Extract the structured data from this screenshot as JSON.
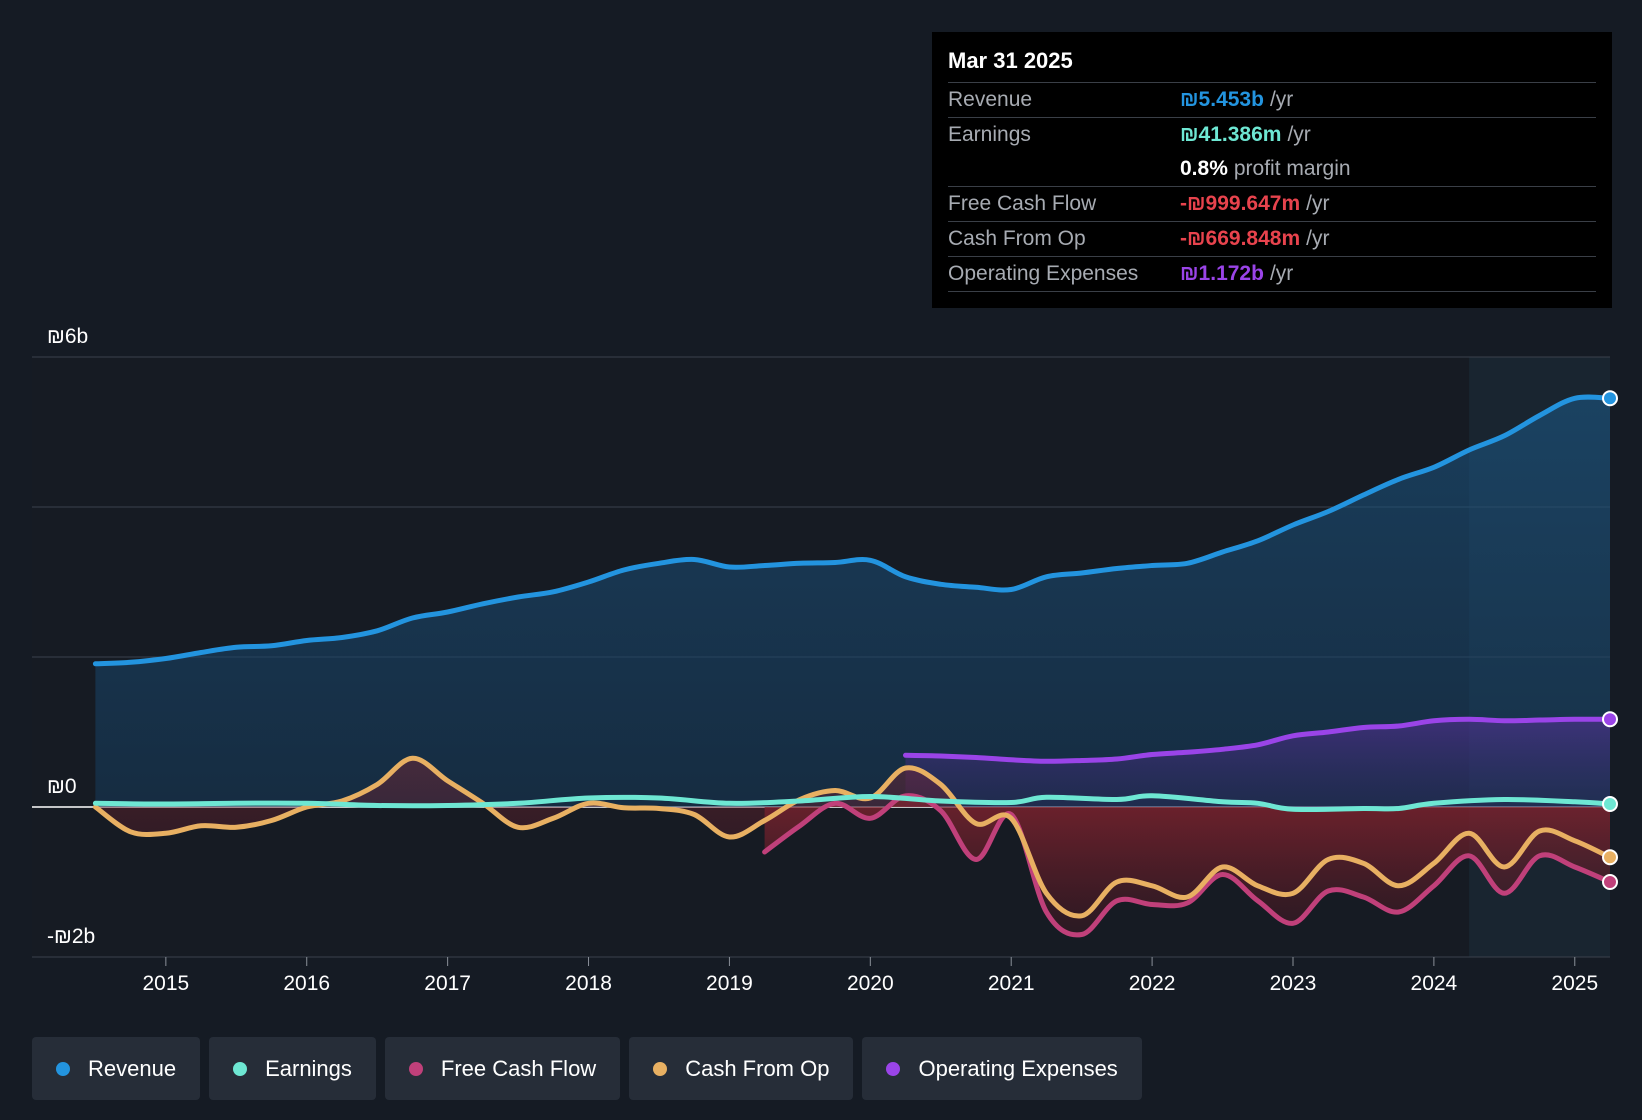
{
  "chart_data": {
    "type": "line",
    "y_unit": "billion ILS",
    "ylim": [
      -2,
      6
    ],
    "y_labels": [
      {
        "value": 6,
        "text": "₪6b"
      },
      {
        "value": 0,
        "text": "₪0"
      },
      {
        "value": -2,
        "text": "-₪2b"
      }
    ],
    "gridlines": [
      6,
      4,
      2,
      0,
      -2
    ],
    "xlim": [
      2014.05,
      2025.25
    ],
    "x_ticks": [
      "2015",
      "2016",
      "2017",
      "2018",
      "2019",
      "2020",
      "2021",
      "2022",
      "2023",
      "2024",
      "2025"
    ],
    "highlight_from": 2024.25,
    "series": [
      {
        "name": "Revenue",
        "color": "#2394df",
        "area": true,
        "points": [
          [
            2014.5,
            1.91
          ],
          [
            2014.75,
            1.93
          ],
          [
            2015.0,
            1.98
          ],
          [
            2015.25,
            2.06
          ],
          [
            2015.5,
            2.13
          ],
          [
            2015.75,
            2.15
          ],
          [
            2016.0,
            2.22
          ],
          [
            2016.25,
            2.26
          ],
          [
            2016.5,
            2.35
          ],
          [
            2016.75,
            2.52
          ],
          [
            2017.0,
            2.6
          ],
          [
            2017.25,
            2.71
          ],
          [
            2017.5,
            2.8
          ],
          [
            2017.75,
            2.87
          ],
          [
            2018.0,
            3.0
          ],
          [
            2018.25,
            3.16
          ],
          [
            2018.5,
            3.25
          ],
          [
            2018.75,
            3.3
          ],
          [
            2019.0,
            3.2
          ],
          [
            2019.25,
            3.22
          ],
          [
            2019.5,
            3.25
          ],
          [
            2019.75,
            3.26
          ],
          [
            2020.0,
            3.29
          ],
          [
            2020.25,
            3.07
          ],
          [
            2020.5,
            2.97
          ],
          [
            2020.75,
            2.93
          ],
          [
            2021.0,
            2.9
          ],
          [
            2021.25,
            3.07
          ],
          [
            2021.5,
            3.12
          ],
          [
            2021.75,
            3.18
          ],
          [
            2022.0,
            3.22
          ],
          [
            2022.25,
            3.25
          ],
          [
            2022.5,
            3.4
          ],
          [
            2022.75,
            3.55
          ],
          [
            2023.0,
            3.76
          ],
          [
            2023.25,
            3.94
          ],
          [
            2023.5,
            4.16
          ],
          [
            2023.75,
            4.37
          ],
          [
            2024.0,
            4.53
          ],
          [
            2024.25,
            4.76
          ],
          [
            2024.5,
            4.95
          ],
          [
            2024.75,
            5.22
          ],
          [
            2025.0,
            5.45
          ],
          [
            2025.25,
            5.45
          ]
        ]
      },
      {
        "name": "Earnings",
        "color": "#6ee7d3",
        "area": false,
        "points": [
          [
            2014.5,
            0.05
          ],
          [
            2015.0,
            0.04
          ],
          [
            2015.5,
            0.05
          ],
          [
            2016.0,
            0.05
          ],
          [
            2016.5,
            0.02
          ],
          [
            2017.0,
            0.02
          ],
          [
            2017.5,
            0.05
          ],
          [
            2018.0,
            0.12
          ],
          [
            2018.5,
            0.12
          ],
          [
            2019.0,
            0.05
          ],
          [
            2019.5,
            0.08
          ],
          [
            2020.0,
            0.14
          ],
          [
            2020.5,
            0.08
          ],
          [
            2021.0,
            0.06
          ],
          [
            2021.25,
            0.13
          ],
          [
            2021.75,
            0.1
          ],
          [
            2022.0,
            0.15
          ],
          [
            2022.5,
            0.07
          ],
          [
            2022.75,
            0.05
          ],
          [
            2023.0,
            -0.03
          ],
          [
            2023.5,
            -0.02
          ],
          [
            2023.75,
            -0.02
          ],
          [
            2024.0,
            0.05
          ],
          [
            2024.5,
            0.1
          ],
          [
            2025.0,
            0.07
          ],
          [
            2025.25,
            0.04
          ]
        ]
      },
      {
        "name": "Free Cash Flow",
        "color": "#c0407a",
        "area": true,
        "points": [
          [
            2019.25,
            -0.6
          ],
          [
            2019.5,
            -0.25
          ],
          [
            2019.75,
            0.05
          ],
          [
            2020.0,
            -0.15
          ],
          [
            2020.25,
            0.15
          ],
          [
            2020.5,
            -0.05
          ],
          [
            2020.75,
            -0.7
          ],
          [
            2021.0,
            -0.1
          ],
          [
            2021.25,
            -1.4
          ],
          [
            2021.5,
            -1.7
          ],
          [
            2021.75,
            -1.25
          ],
          [
            2022.0,
            -1.3
          ],
          [
            2022.25,
            -1.28
          ],
          [
            2022.5,
            -0.9
          ],
          [
            2022.75,
            -1.25
          ],
          [
            2023.0,
            -1.55
          ],
          [
            2023.25,
            -1.12
          ],
          [
            2023.5,
            -1.2
          ],
          [
            2023.75,
            -1.4
          ],
          [
            2024.0,
            -1.05
          ],
          [
            2024.25,
            -0.65
          ],
          [
            2024.5,
            -1.15
          ],
          [
            2024.75,
            -0.65
          ],
          [
            2025.0,
            -0.8
          ],
          [
            2025.25,
            -1.0
          ]
        ]
      },
      {
        "name": "Cash From Op",
        "color": "#e8b062",
        "area": true,
        "points": [
          [
            2014.5,
            0.0
          ],
          [
            2014.75,
            -0.33
          ],
          [
            2015.0,
            -0.35
          ],
          [
            2015.25,
            -0.25
          ],
          [
            2015.5,
            -0.27
          ],
          [
            2015.75,
            -0.18
          ],
          [
            2016.0,
            0.0
          ],
          [
            2016.25,
            0.08
          ],
          [
            2016.5,
            0.3
          ],
          [
            2016.75,
            0.65
          ],
          [
            2017.0,
            0.35
          ],
          [
            2017.25,
            0.05
          ],
          [
            2017.5,
            -0.27
          ],
          [
            2017.75,
            -0.15
          ],
          [
            2018.0,
            0.05
          ],
          [
            2018.25,
            -0.01
          ],
          [
            2018.5,
            -0.02
          ],
          [
            2018.75,
            -0.1
          ],
          [
            2019.0,
            -0.4
          ],
          [
            2019.25,
            -0.18
          ],
          [
            2019.5,
            0.1
          ],
          [
            2019.75,
            0.22
          ],
          [
            2020.0,
            0.12
          ],
          [
            2020.25,
            0.52
          ],
          [
            2020.5,
            0.3
          ],
          [
            2020.75,
            -0.22
          ],
          [
            2021.0,
            -0.15
          ],
          [
            2021.25,
            -1.15
          ],
          [
            2021.5,
            -1.45
          ],
          [
            2021.75,
            -1.0
          ],
          [
            2022.0,
            -1.05
          ],
          [
            2022.25,
            -1.2
          ],
          [
            2022.5,
            -0.8
          ],
          [
            2022.75,
            -1.05
          ],
          [
            2023.0,
            -1.15
          ],
          [
            2023.25,
            -0.7
          ],
          [
            2023.5,
            -0.75
          ],
          [
            2023.75,
            -1.05
          ],
          [
            2024.0,
            -0.75
          ],
          [
            2024.25,
            -0.35
          ],
          [
            2024.5,
            -0.8
          ],
          [
            2024.75,
            -0.32
          ],
          [
            2025.0,
            -0.45
          ],
          [
            2025.25,
            -0.67
          ]
        ]
      },
      {
        "name": "Operating Expenses",
        "color": "#9a44e8",
        "area": true,
        "points": [
          [
            2020.25,
            0.69
          ],
          [
            2020.5,
            0.68
          ],
          [
            2020.75,
            0.66
          ],
          [
            2021.0,
            0.63
          ],
          [
            2021.25,
            0.61
          ],
          [
            2021.5,
            0.62
          ],
          [
            2021.75,
            0.64
          ],
          [
            2022.0,
            0.7
          ],
          [
            2022.25,
            0.73
          ],
          [
            2022.5,
            0.77
          ],
          [
            2022.75,
            0.83
          ],
          [
            2023.0,
            0.95
          ],
          [
            2023.25,
            1.0
          ],
          [
            2023.5,
            1.06
          ],
          [
            2023.75,
            1.08
          ],
          [
            2024.0,
            1.15
          ],
          [
            2024.25,
            1.17
          ],
          [
            2024.5,
            1.15
          ],
          [
            2024.75,
            1.16
          ],
          [
            2025.0,
            1.17
          ],
          [
            2025.25,
            1.17
          ]
        ]
      }
    ]
  },
  "tooltip": {
    "date": "Mar 31 2025",
    "rows": [
      {
        "label": "Revenue",
        "value": "₪5.453b",
        "unit": "/yr",
        "color": "#2394df"
      },
      {
        "label": "Earnings",
        "value": "₪41.386m",
        "unit": "/yr",
        "color": "#6ee7d3"
      },
      {
        "label": "",
        "value": "0.8%",
        "unit": "profit margin",
        "color": "#ffffff"
      },
      {
        "label": "Free Cash Flow",
        "value": "-₪999.647m",
        "unit": "/yr",
        "color": "#e8434d"
      },
      {
        "label": "Cash From Op",
        "value": "-₪669.848m",
        "unit": "/yr",
        "color": "#e8434d"
      },
      {
        "label": "Operating Expenses",
        "value": "₪1.172b",
        "unit": "/yr",
        "color": "#9a44e8"
      }
    ]
  },
  "legend": [
    {
      "label": "Revenue",
      "color": "#2394df"
    },
    {
      "label": "Earnings",
      "color": "#6ee7d3"
    },
    {
      "label": "Free Cash Flow",
      "color": "#c0407a"
    },
    {
      "label": "Cash From Op",
      "color": "#e8b062"
    },
    {
      "label": "Operating Expenses",
      "color": "#9a44e8"
    }
  ]
}
